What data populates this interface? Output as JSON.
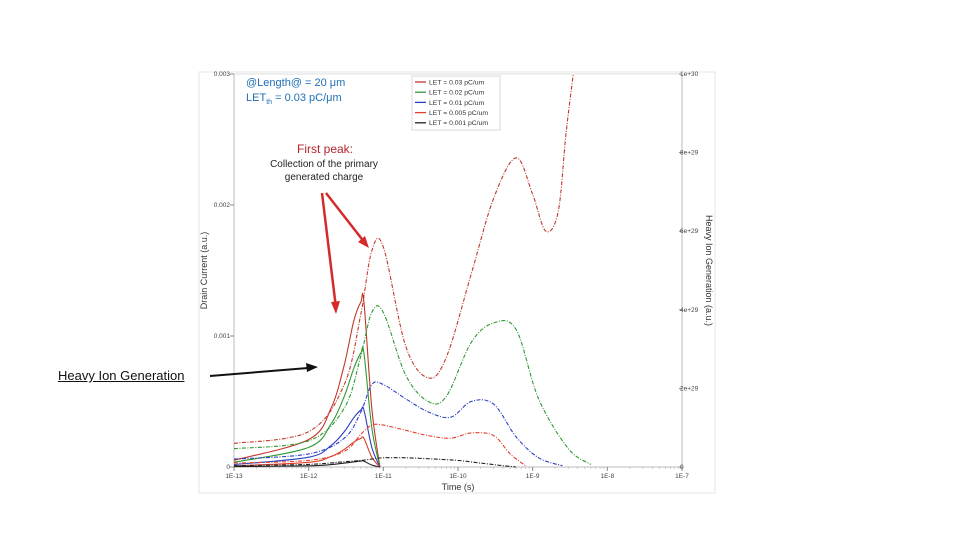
{
  "annotations": {
    "length_label": "@Length@ = 20 μm",
    "let_th_prefix": "LET",
    "let_th_sub": "th",
    "let_th_value": " = 0.03 pC/μm",
    "first_peak_title": "First peak:",
    "first_peak_desc_1": "Collection of the primary",
    "first_peak_desc_2": "generated charge",
    "heavy_ion_label": "Heavy Ion Generation"
  },
  "colors": {
    "red": "#c0392b",
    "green": "#2f9a33",
    "blue": "#2b3fc4",
    "black": "#222222",
    "orange_red": "#e0402a",
    "arrow_red": "#d42a2a",
    "peak_title": "#b3262a",
    "label_blue": "#1f6fb5"
  },
  "chart_data": {
    "type": "line",
    "xlabel": "Time (s)",
    "ylabel": "Drain Current (a.u.)",
    "y2label": "Heavy Ion Generation (a.u.)",
    "x_scale": "log",
    "x_ticks": [
      "1E-13",
      "1E-12",
      "1E-11",
      "1E-10",
      "1E-9",
      "1E-8",
      "1E-7"
    ],
    "x_tick_values": [
      1e-13,
      1e-12,
      1e-11,
      1e-10,
      1e-09,
      1e-08,
      1e-07
    ],
    "y_ticks": [
      "0",
      "0.001",
      "0.002",
      "0.003"
    ],
    "y_tick_values": [
      0,
      0.001,
      0.002,
      0.003
    ],
    "y2_ticks": [
      "0",
      "2e+29",
      "4e+29",
      "6e+29",
      "8e+29",
      "1e+30"
    ],
    "y2_tick_values": [
      0,
      2e+29,
      4e+29,
      6e+29,
      8e+29,
      1e+30
    ],
    "xlim": [
      1e-13,
      1e-07
    ],
    "ylim": [
      0,
      0.003
    ],
    "y2lim": [
      0,
      1e+30
    ],
    "legend_position": "top",
    "series": [
      {
        "name": "LET = 0.03 pC/um",
        "color": "#c0392b",
        "x": [
          1e-13,
          1e-12,
          3e-12,
          5e-12,
          7e-12,
          1e-11,
          2e-11,
          4e-11,
          7e-11,
          1.5e-10,
          3e-10,
          6e-10,
          1e-09,
          1.5e-09,
          2.2e-09,
          2.8e-09,
          3.5e-09
        ],
        "y": [
          0.00018,
          0.00027,
          0.00063,
          0.00117,
          0.00165,
          0.00168,
          0.00092,
          0.00068,
          0.00084,
          0.00147,
          0.00205,
          0.00236,
          0.00208,
          0.0018,
          0.00195,
          0.00255,
          0.003
        ]
      },
      {
        "name": "LET = 0.02 pC/um",
        "color": "#2f9a33",
        "x": [
          1e-13,
          1e-12,
          3e-12,
          5e-12,
          7e-12,
          1e-11,
          2e-11,
          4e-11,
          7e-11,
          1.5e-10,
          3e-10,
          6e-10,
          1.2e-09,
          3e-09,
          6e-09
        ],
        "y": [
          0.00014,
          0.0002,
          0.00045,
          0.00085,
          0.00118,
          0.00118,
          0.0007,
          0.0005,
          0.00054,
          0.00095,
          0.0011,
          0.00105,
          0.00052,
          0.00014,
          2e-05
        ]
      },
      {
        "name": "LET = 0.01 pC/um",
        "color": "#2b3fc4",
        "x": [
          1e-13,
          1e-12,
          3e-12,
          5e-12,
          7e-12,
          1e-11,
          2e-11,
          4e-11,
          8e-11,
          1.5e-10,
          3e-10,
          6e-10,
          1.2e-09,
          2.5e-09
        ],
        "y": [
          6e-05,
          0.0001,
          0.00022,
          0.00042,
          0.00063,
          0.00063,
          0.00052,
          0.00042,
          0.00038,
          0.0005,
          0.00048,
          0.00023,
          7e-05,
          1e-05
        ]
      },
      {
        "name": "LET = 0.005 pC/um",
        "color": "#e0402a",
        "x": [
          1e-13,
          1e-12,
          3e-12,
          5e-12,
          7e-12,
          1e-11,
          2e-11,
          4e-11,
          8e-11,
          1.5e-10,
          3e-10,
          5e-10,
          8e-10
        ],
        "y": [
          3e-05,
          5e-05,
          0.00012,
          0.00025,
          0.00032,
          0.00032,
          0.00028,
          0.00024,
          0.00022,
          0.00026,
          0.00024,
          0.0001,
          1e-05
        ]
      },
      {
        "name": "LET = 0.001 pC/um",
        "color": "#222222",
        "x": [
          1e-13,
          1e-12,
          3e-12,
          5e-12,
          7e-12,
          1e-11,
          2e-11,
          5e-11,
          1e-10,
          2e-10,
          4e-10,
          6e-10
        ],
        "y": [
          1e-05,
          2e-05,
          4e-05,
          5e-05,
          6e-05,
          7e-05,
          7e-05,
          6e-05,
          5e-05,
          3e-05,
          1e-05,
          0.0
        ]
      }
    ],
    "generation_pulses": [
      {
        "name": "LET = 0.03 pC/um",
        "color": "#c0392b",
        "x": [
          1e-13,
          1e-12,
          2e-12,
          3e-12,
          4e-12,
          5e-12,
          5.5e-12,
          7e-12,
          9e-12
        ],
        "y2": [
          1.7e+28,
          7e+28,
          1.5e+29,
          2.6e+29,
          3.7e+29,
          4.2e+29,
          4.2e+29,
          1.5e+29,
          0
        ]
      },
      {
        "name": "LET = 0.02 pC/um",
        "color": "#2f9a33",
        "x": [
          1e-13,
          1e-12,
          2e-12,
          3e-12,
          4e-12,
          5e-12,
          5.5e-12,
          7e-12,
          9e-12
        ],
        "y2": [
          1.2e+28,
          5e+28,
          1.1e+29,
          1.8e+29,
          2.5e+29,
          2.9e+29,
          2.9e+29,
          1e+29,
          0
        ]
      },
      {
        "name": "LET = 0.01 pC/um",
        "color": "#2b3fc4",
        "x": [
          1e-13,
          1e-12,
          2e-12,
          3e-12,
          4e-12,
          5e-12,
          5.5e-12,
          7e-12,
          9e-12
        ],
        "y2": [
          6e+27,
          2.5e+28,
          5.5e+28,
          9e+28,
          1.25e+29,
          1.45e+29,
          1.45e+29,
          5e+28,
          0
        ]
      },
      {
        "name": "LET = 0.005 pC/um",
        "color": "#e0402a",
        "x": [
          1e-13,
          1e-12,
          2e-12,
          3e-12,
          4e-12,
          5e-12,
          5.5e-12,
          7e-12,
          9e-12
        ],
        "y2": [
          3e+27,
          1.2e+28,
          2.7e+28,
          4.5e+28,
          6.3e+28,
          7.3e+28,
          7.3e+28,
          2.5e+28,
          0
        ]
      },
      {
        "name": "LET = 0.001 pC/um",
        "color": "#222222",
        "x": [
          1e-13,
          1e-12,
          2e-12,
          3e-12,
          4e-12,
          5e-12,
          5.5e-12,
          7e-12,
          9e-12
        ],
        "y2": [
          1e+27,
          3e+27,
          6e+27,
          1e+28,
          1.3e+28,
          1.5e+28,
          1.5e+28,
          5e+27,
          0
        ]
      }
    ]
  }
}
